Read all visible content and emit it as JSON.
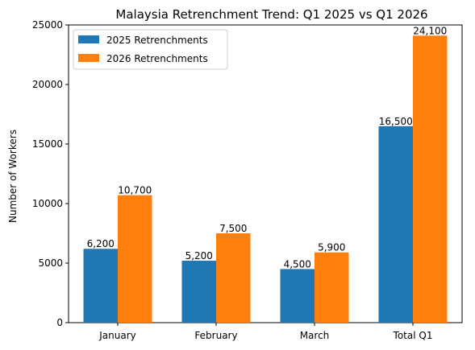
{
  "chart_data": {
    "type": "bar",
    "title": "Malaysia Retrenchment Trend: Q1 2025 vs Q1 2026",
    "xlabel": "",
    "ylabel": "Number of Workers",
    "categories": [
      "January",
      "February",
      "March",
      "Total Q1"
    ],
    "series": [
      {
        "name": "2025 Retrenchments",
        "color": "#1f77b4",
        "values": [
          6200,
          5200,
          4500,
          16500
        ],
        "labels": [
          "6,200",
          "5,200",
          "4,500",
          "16,500"
        ]
      },
      {
        "name": "2026 Retrenchments",
        "color": "#ff7f0e",
        "values": [
          10700,
          7500,
          5900,
          24100
        ],
        "labels": [
          "10,700",
          "7,500",
          "5,900",
          "24,100"
        ]
      }
    ],
    "ylim": [
      0,
      25000
    ],
    "yticks": [
      0,
      5000,
      10000,
      15000,
      20000,
      25000
    ],
    "ytick_labels": [
      "0",
      "5000",
      "10000",
      "15000",
      "20000",
      "25000"
    ],
    "grid": false,
    "legend_position": "top-left"
  }
}
